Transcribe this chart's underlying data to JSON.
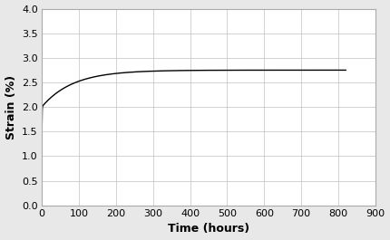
{
  "title": "",
  "xlabel": "Time (hours)",
  "ylabel": "Strain (%)",
  "xlim": [
    0,
    900
  ],
  "ylim": [
    0.0,
    4.0
  ],
  "xticks": [
    0,
    100,
    200,
    300,
    400,
    500,
    600,
    700,
    800,
    900
  ],
  "yticks": [
    0.0,
    0.5,
    1.0,
    1.5,
    2.0,
    2.5,
    3.0,
    3.5,
    4.0
  ],
  "line_color": "#000000",
  "line_width": 1.0,
  "background_color": "#e8e8e8",
  "plot_bg_color": "#ffffff",
  "grid_color": "#c0c0c0",
  "asymptote": 2.775,
  "A": 2.0,
  "B": 0.75,
  "rate_A": 2.5,
  "rate_B": 0.012
}
